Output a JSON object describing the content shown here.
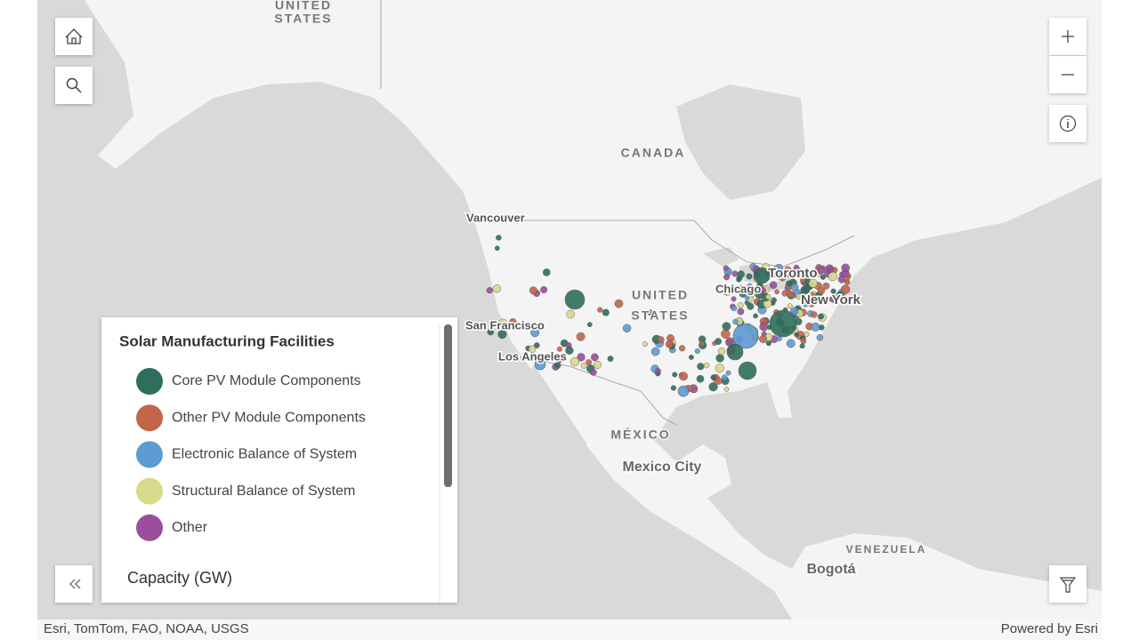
{
  "map": {
    "alaska_label": [
      "UNITED",
      "STATES"
    ],
    "canada_label": "CANADA",
    "us_label": [
      "UNITED",
      "STATES"
    ],
    "mexico_label": "MÉXICO",
    "venezuela_label": "VENEZUELA",
    "cities": {
      "vancouver": "Vancouver",
      "toronto": "Toronto",
      "chicago": "Chicago",
      "new_york": "New York",
      "san_francisco": "San Francisco",
      "los_angeles": "Los Angeles",
      "mexico_city": "Mexico City",
      "bogota": "Bogotá"
    }
  },
  "legend": {
    "title": "Solar Manufacturing Facilities",
    "items": [
      {
        "label": "Core PV Module Components",
        "color": "#2f6e5c"
      },
      {
        "label": "Other PV Module Components",
        "color": "#c2664b"
      },
      {
        "label": "Electronic Balance of System",
        "color": "#5e9bd3"
      },
      {
        "label": "Structural Balance of System",
        "color": "#d9d98c"
      },
      {
        "label": "Other",
        "color": "#9a4e9c"
      }
    ],
    "capacity_title": "Capacity (GW)"
  },
  "attribution": "Esri, TomTom, FAO, NOAA, USGS",
  "powered_by": "Powered by Esri"
}
